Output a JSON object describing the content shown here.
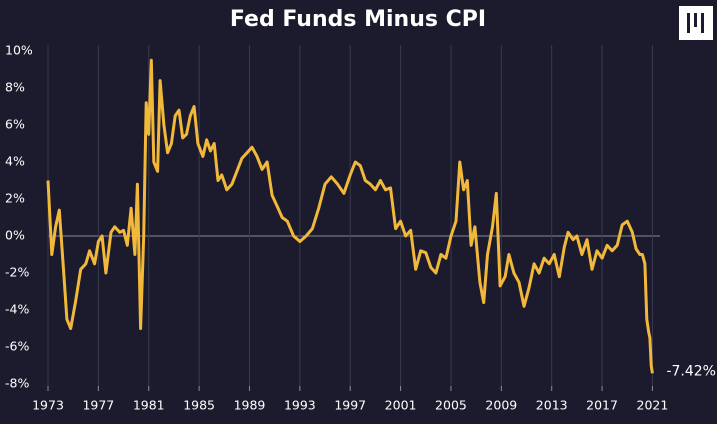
{
  "chart_data": {
    "type": "line",
    "title": "Fed Funds Minus CPI",
    "color": "#f1b83a",
    "grid": "x",
    "xlim": [
      1973,
      2021.6
    ],
    "ylim": [
      -8,
      10
    ],
    "xticks": [
      1973,
      1977,
      1981,
      1985,
      1989,
      1993,
      1997,
      2001,
      2005,
      2009,
      2013,
      2017,
      2021
    ],
    "yticks": [
      {
        "value": 10,
        "label": "10%"
      },
      {
        "value": 8,
        "label": "8%"
      },
      {
        "value": 6,
        "label": "6%"
      },
      {
        "value": 4,
        "label": "4%"
      },
      {
        "value": 2,
        "label": "2%"
      },
      {
        "value": 0,
        "label": "0%"
      },
      {
        "value": -2,
        "label": "-2%"
      },
      {
        "value": -4,
        "label": "-4%"
      },
      {
        "value": -6,
        "label": "-6%"
      },
      {
        "value": -8,
        "label": "-8%"
      }
    ],
    "annotation": "-7.42%",
    "x": [
      1973.0,
      1973.3,
      1973.6,
      1973.9,
      1974.2,
      1974.5,
      1974.8,
      1975.2,
      1975.6,
      1976.0,
      1976.3,
      1976.7,
      1977.0,
      1977.3,
      1977.6,
      1978.0,
      1978.3,
      1978.7,
      1979.0,
      1979.3,
      1979.6,
      1979.9,
      1980.1,
      1980.35,
      1980.6,
      1980.8,
      1981.0,
      1981.2,
      1981.4,
      1981.7,
      1981.9,
      1982.2,
      1982.5,
      1982.8,
      1983.1,
      1983.4,
      1983.7,
      1984.0,
      1984.3,
      1984.6,
      1984.9,
      1985.3,
      1985.6,
      1985.9,
      1986.2,
      1986.5,
      1986.8,
      1987.2,
      1987.6,
      1988.0,
      1988.4,
      1988.8,
      1989.2,
      1989.6,
      1990.0,
      1990.4,
      1990.8,
      1991.2,
      1991.6,
      1992.0,
      1992.5,
      1993.0,
      1993.5,
      1994.0,
      1994.5,
      1995.0,
      1995.5,
      1996.0,
      1996.5,
      1997.0,
      1997.4,
      1997.8,
      1998.2,
      1998.6,
      1999.0,
      1999.4,
      1999.8,
      2000.2,
      2000.6,
      2001.0,
      2001.4,
      2001.8,
      2002.2,
      2002.6,
      2003.0,
      2003.4,
      2003.8,
      2004.2,
      2004.6,
      2005.0,
      2005.4,
      2005.7,
      2006.0,
      2006.3,
      2006.6,
      2006.9,
      2007.3,
      2007.6,
      2007.9,
      2008.3,
      2008.6,
      2008.9,
      2009.3,
      2009.6,
      2010.0,
      2010.4,
      2010.8,
      2011.2,
      2011.6,
      2012.0,
      2012.4,
      2012.8,
      2013.2,
      2013.6,
      2014.0,
      2014.3,
      2014.7,
      2015.0,
      2015.4,
      2015.8,
      2016.2,
      2016.6,
      2017.0,
      2017.4,
      2017.8,
      2018.2,
      2018.6,
      2019.0,
      2019.4,
      2019.7,
      2020.0,
      2020.2,
      2020.4,
      2020.55,
      2020.7,
      2020.8,
      2020.9,
      2021.0
    ],
    "values": [
      3.0,
      -1.0,
      0.5,
      1.4,
      -1.5,
      -4.5,
      -5.0,
      -3.5,
      -1.8,
      -1.5,
      -0.8,
      -1.5,
      -0.3,
      0.0,
      -2.0,
      0.2,
      0.5,
      0.2,
      0.3,
      -0.5,
      1.5,
      -1.0,
      2.8,
      -5.0,
      0.0,
      7.2,
      5.5,
      9.5,
      4.0,
      3.5,
      8.4,
      6.0,
      4.5,
      5.0,
      6.5,
      6.8,
      5.3,
      5.5,
      6.5,
      7.0,
      5.0,
      4.3,
      5.2,
      4.6,
      5.0,
      3.0,
      3.3,
      2.5,
      2.8,
      3.5,
      4.2,
      4.5,
      4.8,
      4.3,
      3.6,
      4.0,
      2.2,
      1.6,
      1.0,
      0.8,
      0.0,
      -0.3,
      0.0,
      0.4,
      1.5,
      2.8,
      3.2,
      2.8,
      2.3,
      3.3,
      4.0,
      3.8,
      3.0,
      2.8,
      2.5,
      3.0,
      2.5,
      2.6,
      0.4,
      0.8,
      0.0,
      0.3,
      -1.8,
      -0.8,
      -0.9,
      -1.7,
      -2.0,
      -1.0,
      -1.2,
      0.0,
      0.8,
      4.0,
      2.5,
      3.0,
      -0.5,
      0.5,
      -2.5,
      -3.6,
      -1.0,
      0.5,
      2.3,
      -2.7,
      -2.2,
      -1.0,
      -2.0,
      -2.5,
      -3.8,
      -2.8,
      -1.5,
      -2.0,
      -1.2,
      -1.5,
      -1.0,
      -2.2,
      -0.6,
      0.2,
      -0.2,
      0.0,
      -1.0,
      -0.2,
      -1.8,
      -0.8,
      -1.2,
      -0.5,
      -0.8,
      -0.5,
      0.6,
      0.8,
      0.2,
      -0.7,
      -1.0,
      -1.0,
      -1.5,
      -4.5,
      -5.2,
      -5.5,
      -7.0,
      -7.42
    ]
  }
}
